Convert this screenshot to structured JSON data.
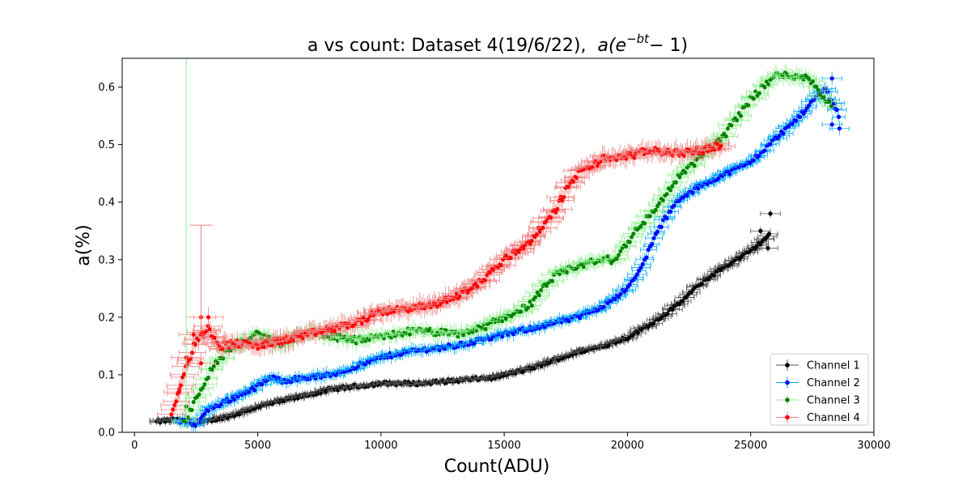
{
  "chart_data": {
    "type": "scatter",
    "title": "a vs count: Dataset 4(19/6/22),",
    "title_formula": {
      "a": "a(e",
      "exp": "−bt",
      "tail": "− 1)"
    },
    "xlabel": "Count(ADU)",
    "ylabel": "a(%)",
    "xlim": [
      -500,
      30000
    ],
    "ylim": [
      0,
      0.65
    ],
    "xticks": [
      0,
      5000,
      10000,
      15000,
      20000,
      25000,
      30000
    ],
    "yticks": [
      0.0,
      0.1,
      0.2,
      0.3,
      0.4,
      0.5,
      0.6
    ],
    "grid": false,
    "legend_position": "lower-right",
    "series": [
      {
        "name": "Channel 1",
        "color": "#000000",
        "errcolor": "#555555",
        "knots": [
          [
            900,
            0.018
          ],
          [
            1500,
            0.022
          ],
          [
            2500,
            0.015
          ],
          [
            4000,
            0.03
          ],
          [
            5000,
            0.045
          ],
          [
            6000,
            0.055
          ],
          [
            7000,
            0.065
          ],
          [
            8000,
            0.075
          ],
          [
            9000,
            0.08
          ],
          [
            10000,
            0.085
          ],
          [
            11500,
            0.085
          ],
          [
            13000,
            0.09
          ],
          [
            14500,
            0.095
          ],
          [
            16000,
            0.11
          ],
          [
            17000,
            0.125
          ],
          [
            18000,
            0.14
          ],
          [
            19000,
            0.15
          ],
          [
            20000,
            0.165
          ],
          [
            21000,
            0.19
          ],
          [
            22000,
            0.22
          ],
          [
            23000,
            0.26
          ],
          [
            24000,
            0.29
          ],
          [
            25000,
            0.315
          ],
          [
            25800,
            0.345
          ]
        ],
        "step": 70,
        "jitter": 0.003,
        "xerr": 400,
        "yerr": 0.006,
        "extra_points": [
          [
            25400,
            0.35
          ],
          [
            25700,
            0.32
          ],
          [
            25800,
            0.38
          ]
        ]
      },
      {
        "name": "Channel 2",
        "color": "#0000ff",
        "errcolor": "#00aaff",
        "knots": [
          [
            1800,
            0.02
          ],
          [
            2500,
            0.015
          ],
          [
            3000,
            0.04
          ],
          [
            4000,
            0.06
          ],
          [
            5000,
            0.08
          ],
          [
            5500,
            0.095
          ],
          [
            6000,
            0.09
          ],
          [
            7000,
            0.095
          ],
          [
            8000,
            0.1
          ],
          [
            9000,
            0.115
          ],
          [
            10000,
            0.13
          ],
          [
            11000,
            0.14
          ],
          [
            12000,
            0.145
          ],
          [
            13000,
            0.15
          ],
          [
            14000,
            0.16
          ],
          [
            15000,
            0.17
          ],
          [
            16000,
            0.18
          ],
          [
            17000,
            0.19
          ],
          [
            18000,
            0.2
          ],
          [
            19000,
            0.22
          ],
          [
            20000,
            0.25
          ],
          [
            20500,
            0.28
          ],
          [
            21000,
            0.33
          ],
          [
            21500,
            0.37
          ],
          [
            22000,
            0.4
          ],
          [
            23000,
            0.43
          ],
          [
            24000,
            0.45
          ],
          [
            25000,
            0.47
          ],
          [
            26000,
            0.51
          ],
          [
            27000,
            0.55
          ],
          [
            28000,
            0.6
          ],
          [
            28600,
            0.55
          ]
        ],
        "step": 75,
        "jitter": 0.004,
        "xerr": 400,
        "yerr": 0.01,
        "extra_points": [
          [
            28300,
            0.615
          ],
          [
            28300,
            0.535
          ],
          [
            28600,
            0.528
          ],
          [
            28400,
            0.572
          ]
        ]
      },
      {
        "name": "Channel 3",
        "color": "#008000",
        "errcolor": "#90ee90",
        "knots": [
          [
            2100,
            0.02
          ],
          [
            2500,
            0.06
          ],
          [
            3000,
            0.1
          ],
          [
            3500,
            0.13
          ],
          [
            4000,
            0.15
          ],
          [
            5000,
            0.17
          ],
          [
            5500,
            0.16
          ],
          [
            6000,
            0.15
          ],
          [
            7000,
            0.18
          ],
          [
            8000,
            0.165
          ],
          [
            9000,
            0.16
          ],
          [
            10000,
            0.165
          ],
          [
            11000,
            0.175
          ],
          [
            12000,
            0.175
          ],
          [
            13000,
            0.17
          ],
          [
            14000,
            0.18
          ],
          [
            15000,
            0.2
          ],
          [
            16000,
            0.22
          ],
          [
            17000,
            0.27
          ],
          [
            18000,
            0.29
          ],
          [
            19000,
            0.3
          ],
          [
            19500,
            0.3
          ],
          [
            20000,
            0.33
          ],
          [
            20500,
            0.36
          ],
          [
            21000,
            0.38
          ],
          [
            21500,
            0.41
          ],
          [
            22000,
            0.44
          ],
          [
            23000,
            0.48
          ],
          [
            23500,
            0.5
          ],
          [
            24000,
            0.52
          ],
          [
            24500,
            0.55
          ],
          [
            25000,
            0.58
          ],
          [
            25500,
            0.6
          ],
          [
            26000,
            0.62
          ],
          [
            27000,
            0.62
          ],
          [
            27500,
            0.61
          ],
          [
            28000,
            0.58
          ],
          [
            28300,
            0.57
          ]
        ],
        "step": 75,
        "jitter": 0.006,
        "xerr": 500,
        "yerr": 0.013,
        "extra_points": [
          [
            2100,
            0.045
          ],
          [
            2000,
            0.02
          ]
        ]
      },
      {
        "name": "Channel 4",
        "color": "#ff0000",
        "errcolor": "#f08080",
        "knots": [
          [
            1500,
            0.03
          ],
          [
            1700,
            0.06
          ],
          [
            2000,
            0.1
          ],
          [
            2500,
            0.16
          ],
          [
            3000,
            0.18
          ],
          [
            3500,
            0.15
          ],
          [
            4000,
            0.155
          ],
          [
            5000,
            0.15
          ],
          [
            6000,
            0.16
          ],
          [
            7000,
            0.17
          ],
          [
            8000,
            0.18
          ],
          [
            9000,
            0.19
          ],
          [
            10000,
            0.21
          ],
          [
            11000,
            0.215
          ],
          [
            12000,
            0.22
          ],
          [
            13000,
            0.235
          ],
          [
            14000,
            0.26
          ],
          [
            15000,
            0.3
          ],
          [
            16000,
            0.33
          ],
          [
            17000,
            0.38
          ],
          [
            17500,
            0.42
          ],
          [
            18000,
            0.45
          ],
          [
            19000,
            0.475
          ],
          [
            20000,
            0.48
          ],
          [
            21000,
            0.49
          ],
          [
            22000,
            0.485
          ],
          [
            23000,
            0.49
          ],
          [
            23800,
            0.5
          ]
        ],
        "step": 65,
        "jitter": 0.006,
        "xerr": 600,
        "yerr": 0.015,
        "extra_points": [
          [
            1800,
            0.07
          ],
          [
            2100,
            0.13
          ],
          [
            2400,
            0.17
          ],
          [
            2700,
            0.2
          ],
          [
            2700,
            0.12
          ],
          [
            3000,
            0.2
          ]
        ]
      }
    ],
    "tall_errorbars": [
      {
        "series": "Channel 3",
        "x": 2100,
        "y": 0.02,
        "top": 0.65
      },
      {
        "series": "Channel 4",
        "x": 2700,
        "y": 0.18,
        "top": 0.36
      }
    ]
  }
}
